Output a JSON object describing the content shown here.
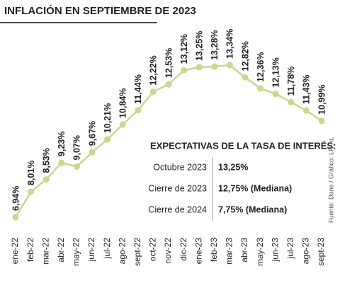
{
  "chart_data": {
    "type": "line",
    "title": "INFLACIÓN EN SEPTIEMBRE DE 2023",
    "categories": [
      "ene-22",
      "feb-22",
      "mar-22",
      "abr-22",
      "may-22",
      "jun-22",
      "jul-22",
      "ago-22",
      "sept-22",
      "oct-22",
      "nov-22",
      "dic-22",
      "ene-23",
      "feb-23",
      "mar-23",
      "abr-23",
      "may-23",
      "jun-23",
      "jul-23",
      "ago-23",
      "sept-23"
    ],
    "values": [
      6.94,
      8.01,
      8.53,
      9.23,
      9.07,
      9.67,
      10.21,
      10.84,
      11.44,
      12.22,
      12.53,
      13.12,
      13.25,
      13.28,
      13.34,
      12.82,
      12.36,
      12.13,
      11.78,
      11.43,
      10.99
    ],
    "value_labels": [
      "6,94%",
      "8,01%",
      "8,53%",
      "9,23%",
      "9,07%",
      "9,67%",
      "10,21%",
      "10,84%",
      "11,44%",
      "12,22%",
      "12,53%",
      "13,12%",
      "13,25%",
      "13,28%",
      "13,34%",
      "12,82%",
      "12,36%",
      "12,13%",
      "11,78%",
      "11,43%",
      "10,99%"
    ],
    "color": "#c6d98c",
    "source": "Fuente: Dane / Gráfico: LR-AL"
  },
  "table": {
    "title": "EXPECTATIVAS DE LA TASA DE INTERÉS:",
    "rows": [
      [
        "Octubre 2023",
        "13,25%"
      ],
      [
        "Cierre de 2023",
        "12,75% (Mediana)"
      ],
      [
        "Cierre de 2024",
        "7,75% (Mediana)"
      ]
    ]
  }
}
